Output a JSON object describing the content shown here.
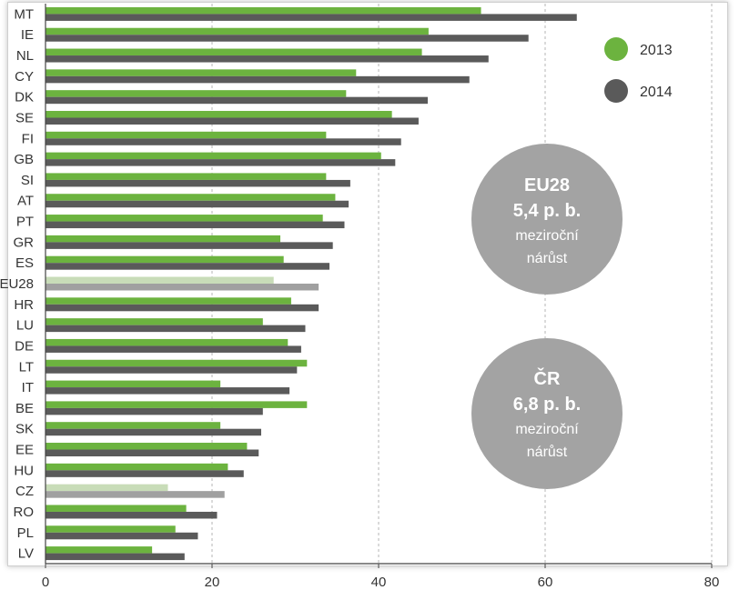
{
  "chart_data": {
    "type": "bar",
    "orientation": "horizontal",
    "categories": [
      "MT",
      "IE",
      "NL",
      "CY",
      "DK",
      "SE",
      "FI",
      "GB",
      "SI",
      "AT",
      "PT",
      "GR",
      "ES",
      "EU28",
      "HR",
      "LU",
      "DE",
      "LT",
      "IT",
      "BE",
      "SK",
      "EE",
      "HU",
      "CZ",
      "RO",
      "PL",
      "LV"
    ],
    "series": [
      {
        "name": "2013",
        "color": "#6cb33f",
        "values": [
          52.3,
          46.0,
          45.2,
          37.3,
          36.1,
          41.6,
          33.7,
          40.3,
          33.7,
          34.8,
          33.3,
          28.2,
          28.6,
          27.4,
          29.5,
          26.1,
          29.1,
          31.4,
          21.0,
          31.4,
          21.0,
          24.2,
          21.9,
          14.7,
          16.9,
          15.6,
          12.8
        ]
      },
      {
        "name": "2014",
        "color": "#5a5a5a",
        "values": [
          63.8,
          58.0,
          53.2,
          50.9,
          45.9,
          44.8,
          42.7,
          42.0,
          36.6,
          36.4,
          35.9,
          34.5,
          34.1,
          32.8,
          32.8,
          31.2,
          30.7,
          30.2,
          29.3,
          26.1,
          25.9,
          25.6,
          23.8,
          21.5,
          20.6,
          18.3,
          16.7
        ]
      }
    ],
    "highlight": {
      "categories": [
        "EU28",
        "CZ"
      ],
      "colors": {
        "2013": "#c8dcb8",
        "2014": "#a0a0a0"
      }
    },
    "xlim": [
      0,
      80
    ],
    "xticks": [
      "0",
      "20",
      "40",
      "60",
      "80"
    ],
    "grid": "vertical dashed",
    "legend": "top-right",
    "title": "",
    "xlabel": "",
    "ylabel": ""
  },
  "callouts": [
    {
      "title": "EU28",
      "value": "5,4 p. b.",
      "line1": "meziroční",
      "line2": "nárůst",
      "color": "#a3a3a3"
    },
    {
      "title": "ČR",
      "value": "6,8 p. b.",
      "line1": "meziroční",
      "line2": "nárůst",
      "color": "#a3a3a3"
    }
  ]
}
